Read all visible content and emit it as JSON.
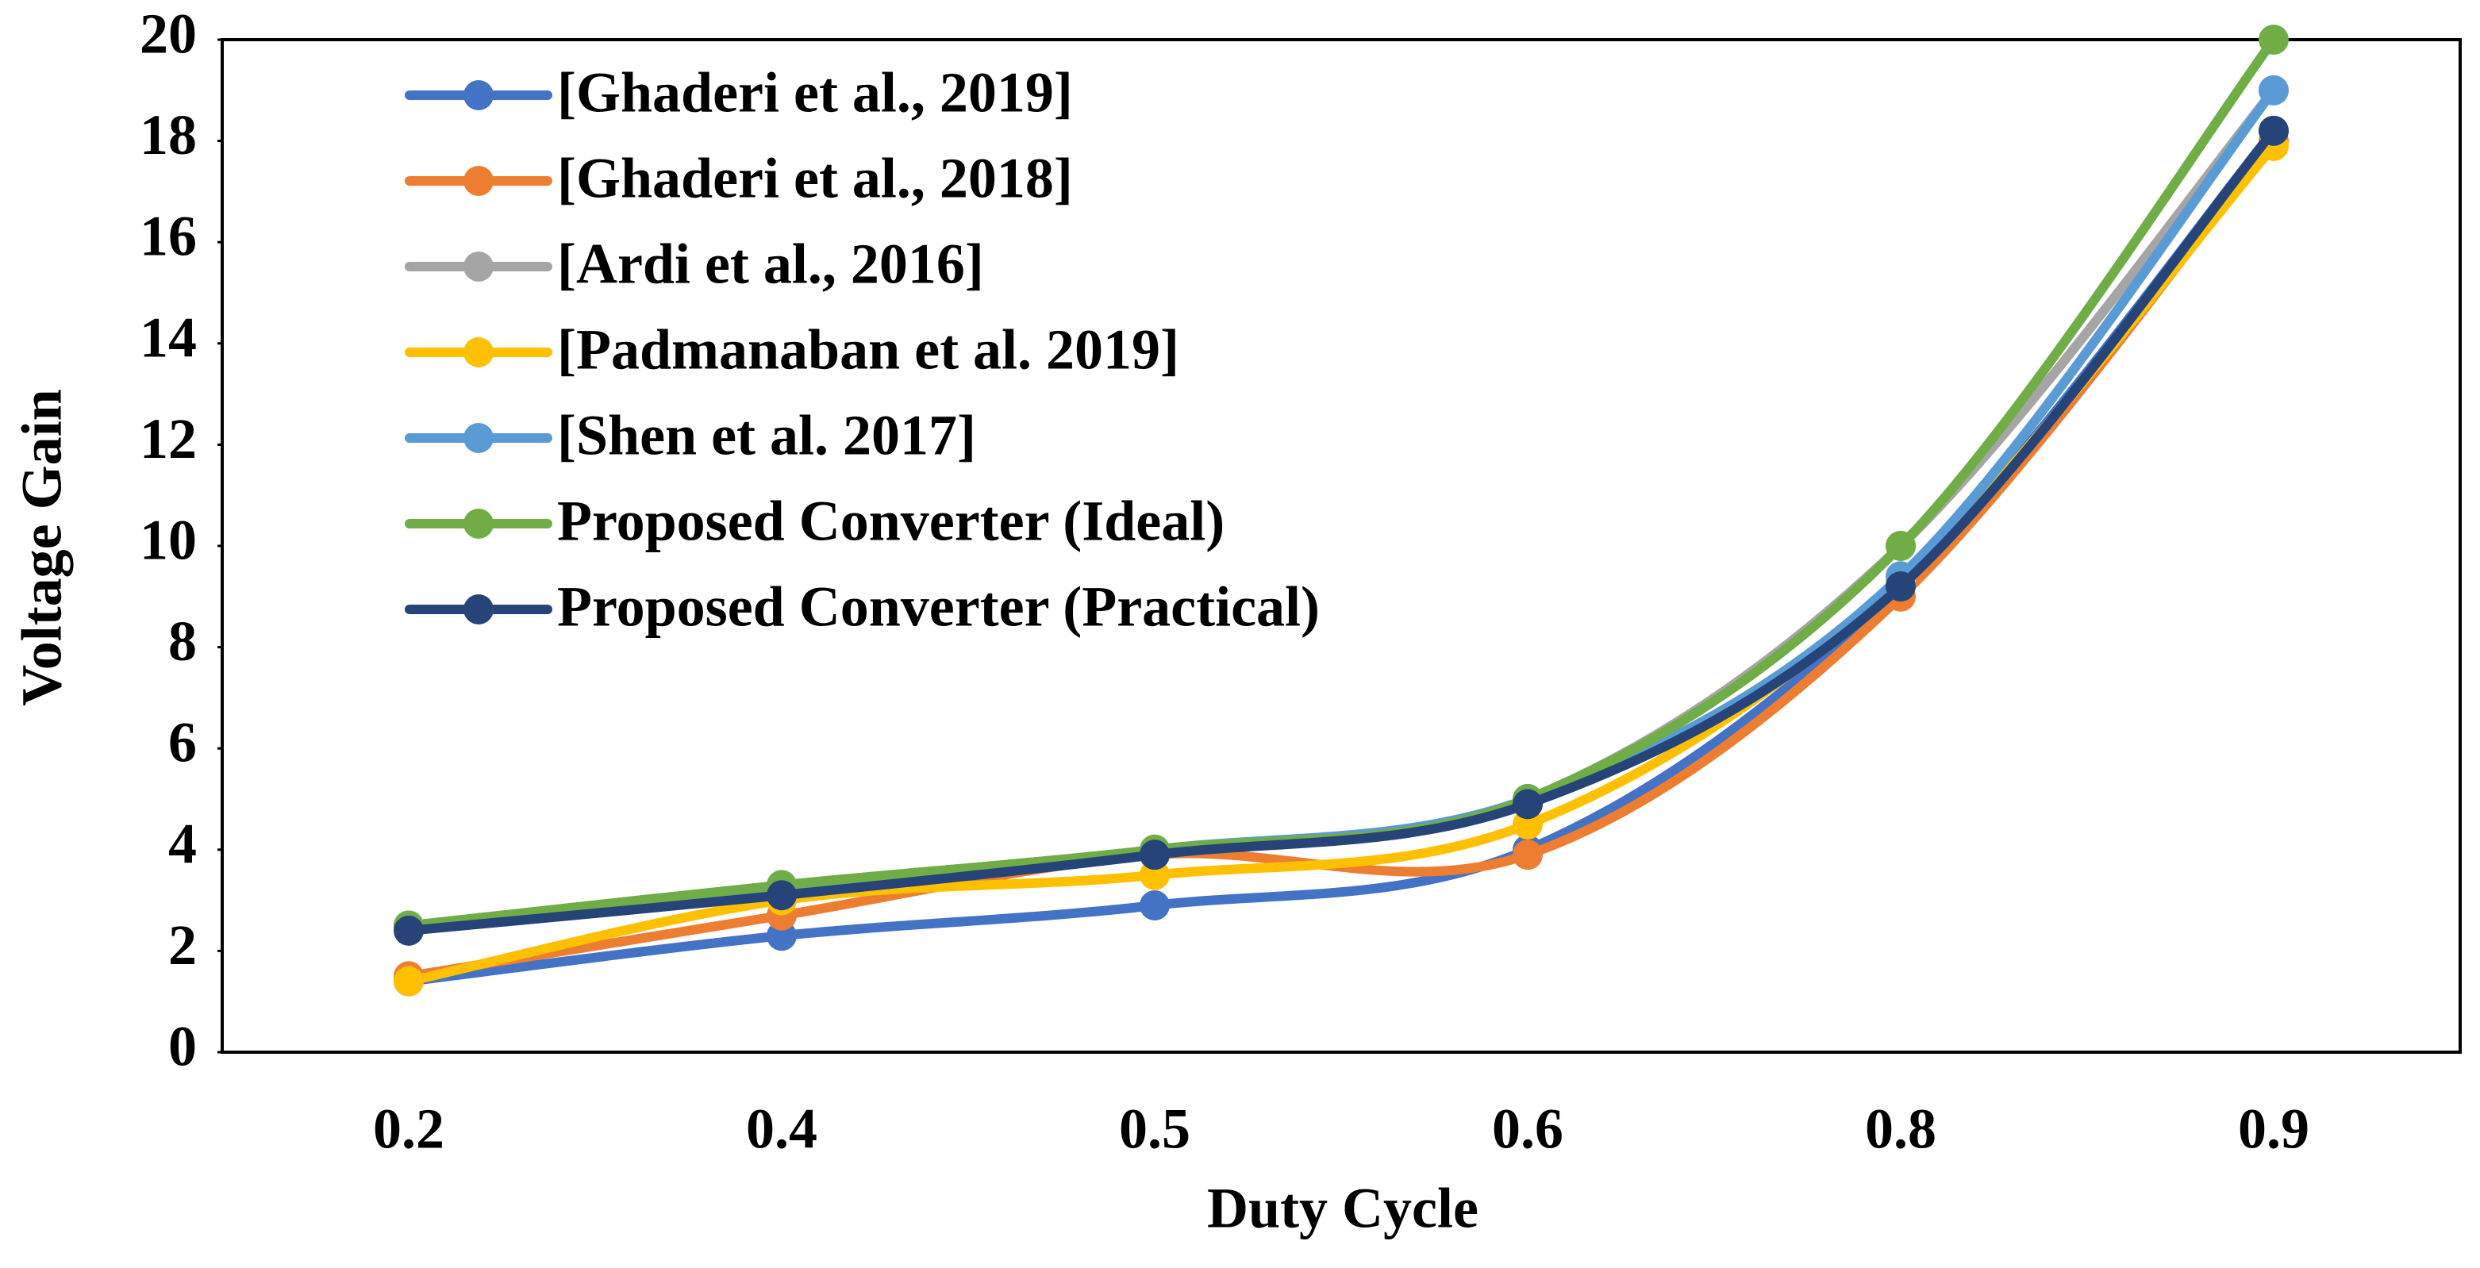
{
  "chart_data": {
    "type": "line",
    "smooth": true,
    "x_label": "Duty Cycle",
    "y_label": "Voltage Gain",
    "categories": [
      "0.2",
      "0.4",
      "0.5",
      "0.6",
      "0.8",
      "0.9"
    ],
    "ylim": [
      0,
      20
    ],
    "yticks": [
      0,
      2,
      4,
      6,
      8,
      10,
      12,
      14,
      16,
      18,
      20
    ],
    "grid": false,
    "legend": "upper-left",
    "series": [
      {
        "name": "[Ghaderi et al., 2019]",
        "color": "#4472c4",
        "values": [
          1.4,
          2.3,
          2.9,
          4.0,
          9.2,
          18.2
        ]
      },
      {
        "name": "[Ghaderi et al., 2018]",
        "color": "#ed7d31",
        "values": [
          1.5,
          2.7,
          3.9,
          3.9,
          9.0,
          18.0
        ]
      },
      {
        "name": "[Ardi et al., 2016]",
        "color": "#a5a5a5",
        "values": [
          2.5,
          3.3,
          4.0,
          5.0,
          10.0,
          19.0
        ]
      },
      {
        "name": "[Padmanaban et al. 2019]",
        "color": "#ffc000",
        "values": [
          1.4,
          3.0,
          3.5,
          4.5,
          9.3,
          17.9
        ]
      },
      {
        "name": "[Shen et al. 2017]",
        "color": "#5b9bd5",
        "values": [
          2.5,
          3.2,
          4.0,
          5.0,
          9.4,
          19.0
        ]
      },
      {
        "name": "Proposed Converter (Ideal)",
        "color": "#70ad47",
        "values": [
          2.5,
          3.3,
          4.0,
          5.0,
          10.0,
          20.0
        ]
      },
      {
        "name": "Proposed Converter (Practical)",
        "color": "#264478",
        "values": [
          2.4,
          3.1,
          3.9,
          4.9,
          9.2,
          18.2
        ]
      }
    ]
  }
}
